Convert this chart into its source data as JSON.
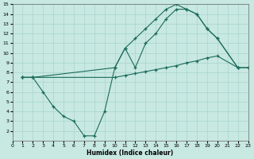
{
  "xlabel": "Humidex (Indice chaleur)",
  "bg_color": "#c8e8e2",
  "grid_color": "#a8d4ce",
  "line_color": "#1a6b5a",
  "xlim": [
    0,
    23
  ],
  "ylim": [
    1,
    15
  ],
  "xticks": [
    0,
    1,
    2,
    3,
    4,
    5,
    6,
    7,
    8,
    9,
    10,
    11,
    12,
    13,
    14,
    15,
    16,
    17,
    18,
    19,
    20,
    21,
    22,
    23
  ],
  "yticks": [
    2,
    3,
    4,
    5,
    6,
    7,
    8,
    9,
    10,
    11,
    12,
    13,
    14,
    15
  ],
  "line1_x": [
    1,
    2,
    3,
    4,
    5,
    6,
    7,
    8,
    9,
    10,
    11,
    12,
    13,
    14,
    15,
    16,
    17,
    18,
    19,
    20,
    22
  ],
  "line1_y": [
    7.5,
    7.5,
    6.0,
    4.5,
    3.5,
    3.0,
    1.5,
    1.5,
    4.0,
    8.5,
    10.5,
    8.5,
    11.0,
    12.0,
    13.5,
    14.5,
    14.5,
    14.0,
    12.5,
    11.5,
    8.5
  ],
  "line2_x": [
    1,
    2,
    10,
    11,
    12,
    13,
    14,
    15,
    16,
    17,
    18,
    19,
    20,
    22,
    23
  ],
  "line2_y": [
    7.5,
    7.5,
    8.5,
    10.5,
    11.5,
    12.5,
    13.5,
    14.5,
    15.0,
    14.5,
    14.0,
    12.5,
    11.5,
    8.5,
    8.5
  ],
  "line3_x": [
    1,
    2,
    10,
    11,
    12,
    13,
    14,
    15,
    16,
    17,
    18,
    19,
    20,
    22,
    23
  ],
  "line3_y": [
    7.5,
    7.5,
    7.5,
    7.7,
    7.9,
    8.1,
    8.3,
    8.5,
    8.7,
    9.0,
    9.2,
    9.5,
    9.7,
    8.5,
    8.5
  ]
}
